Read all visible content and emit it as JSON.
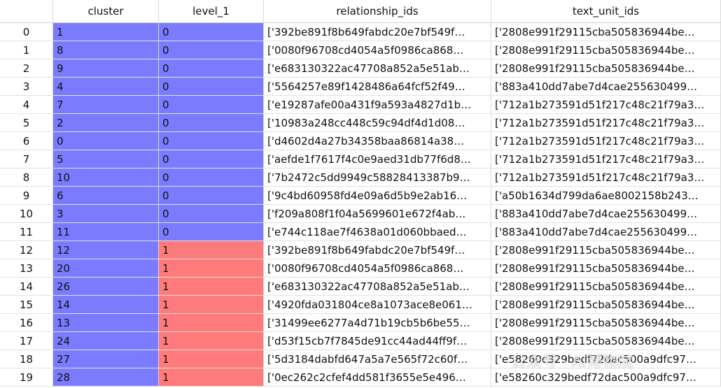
{
  "table": {
    "columns": [
      "cluster",
      "level_1",
      "relationship_ids",
      "text_unit_ids"
    ],
    "rows": [
      [
        0,
        1,
        0,
        "['392be891f8b649fabdc20e7bf549f…",
        "['2808e991f29115cba505836944be…"
      ],
      [
        1,
        8,
        0,
        "['0080f96708cd4054a5f0986ca868…",
        "['2808e991f29115cba505836944be…"
      ],
      [
        2,
        9,
        0,
        "['e683130322ac47708a852a5e51ab…",
        "['2808e991f29115cba505836944be…"
      ],
      [
        3,
        4,
        0,
        "['5564257e89f1428486a64fcf52f49…",
        "['883a410dd7abe7d4cae255630499…"
      ],
      [
        4,
        7,
        0,
        "['e19287afe00a431f9a593a4827d1b…",
        "['712a1b273591d51f217c48c21f79a3…"
      ],
      [
        5,
        2,
        0,
        "['10983a248cc448c59c94df4d1d08…",
        "['712a1b273591d51f217c48c21f79a3…"
      ],
      [
        6,
        0,
        0,
        "['d4602d4a27b34358baa86814a38…",
        "['712a1b273591d51f217c48c21f79a3…"
      ],
      [
        7,
        5,
        0,
        "['aefde1f7617f4c0e9aed31db77f6d8…",
        "['712a1b273591d51f217c48c21f79a3…"
      ],
      [
        8,
        10,
        0,
        "['7b2472c5dd9949c58828413387b9…",
        "['712a1b273591d51f217c48c21f79a3…"
      ],
      [
        9,
        6,
        0,
        "['9c4bd60958fd4e09a6d5b9e2ab16…",
        "['a50b1634d799da6ae8002158b243…"
      ],
      [
        10,
        3,
        0,
        "['f209a808f1f04a5699601e672f4ab…",
        "['883a410dd7abe7d4cae255630499…"
      ],
      [
        11,
        11,
        0,
        "['e744c118ae7f4638a01d060bbaed…",
        "['883a410dd7abe7d4cae255630499…"
      ],
      [
        12,
        12,
        1,
        "['392be891f8b649fabdc20e7bf549f…",
        "['2808e991f29115cba505836944be…"
      ],
      [
        13,
        20,
        1,
        "['0080f96708cd4054a5f0986ca868…",
        "['2808e991f29115cba505836944be…"
      ],
      [
        14,
        26,
        1,
        "['e683130322ac47708a852a5e51ab…",
        "['2808e991f29115cba505836944be…"
      ],
      [
        15,
        14,
        1,
        "['4920fda031804ce8a1073ace8e061…",
        "['2808e991f29115cba505836944be…"
      ],
      [
        16,
        13,
        1,
        "['31499ee6277a4d71b19cb5b6be55…",
        "['2808e991f29115cba505836944be…"
      ],
      [
        17,
        24,
        1,
        "['d53f15cb7f7845de91cc44ad44ff9f…",
        "['2808e991f29115cba505836944be…"
      ],
      [
        18,
        27,
        1,
        "['5d3184dabfd647a5a7e565f72c60f…",
        "['e58260c329bedf72dac500a9dfc97…"
      ],
      [
        19,
        28,
        1,
        "['0ec262c2cfef4dd581f3655e5e496…",
        "['e58260c329bedf72dac500a9dfc97…"
      ]
    ]
  },
  "watermark": "公众号 · AI博物院"
}
